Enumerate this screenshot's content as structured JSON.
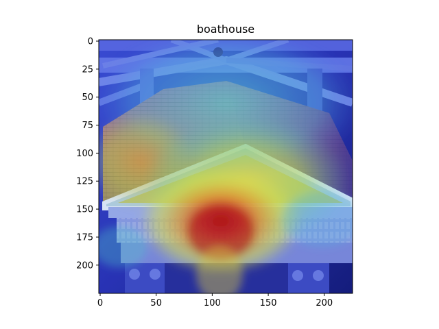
{
  "figure": {
    "title": "boathouse"
  },
  "axes": {
    "x_ticks": [
      {
        "value": 0,
        "label": "0"
      },
      {
        "value": 50,
        "label": "50"
      },
      {
        "value": 100,
        "label": "100"
      },
      {
        "value": 150,
        "label": "150"
      },
      {
        "value": 200,
        "label": "200"
      }
    ],
    "y_ticks": [
      {
        "value": 0,
        "label": "0"
      },
      {
        "value": 25,
        "label": "25"
      },
      {
        "value": 50,
        "label": "50"
      },
      {
        "value": 75,
        "label": "75"
      },
      {
        "value": 100,
        "label": "100"
      },
      {
        "value": 125,
        "label": "125"
      },
      {
        "value": 150,
        "label": "150"
      },
      {
        "value": 175,
        "label": "175"
      },
      {
        "value": 200,
        "label": "200"
      }
    ],
    "xlim": [
      0,
      224
    ],
    "ylim": [
      224,
      0
    ]
  },
  "image": {
    "subject": "building-facade-pediment",
    "overlay": "heatmap-jet"
  }
}
